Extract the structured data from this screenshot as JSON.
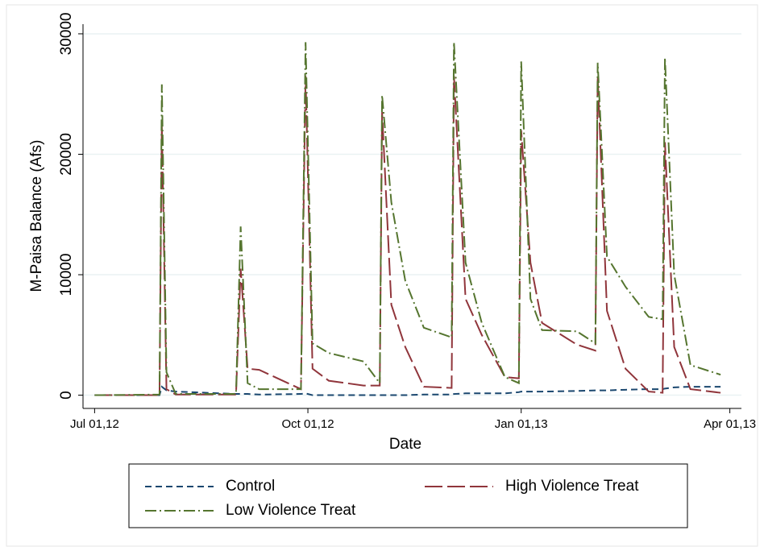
{
  "chart_data": {
    "type": "line",
    "y_label": "M-Paisa Balance (Afs)",
    "x_label": "Date",
    "x": [
      "2012-07-01",
      "2012-07-29",
      "2012-07-30",
      "2012-08-01",
      "2012-08-05",
      "2012-08-31",
      "2012-09-02",
      "2012-09-05",
      "2012-09-10",
      "2012-09-28",
      "2012-09-30",
      "2012-10-03",
      "2012-10-10",
      "2012-10-25",
      "2012-11-01",
      "2012-11-02",
      "2012-11-06",
      "2012-11-12",
      "2012-11-20",
      "2012-12-02",
      "2012-12-03",
      "2012-12-08",
      "2012-12-15",
      "2012-12-25",
      "2012-12-31",
      "2013-01-01",
      "2013-01-05",
      "2013-01-10",
      "2013-01-25",
      "2013-02-02",
      "2013-02-03",
      "2013-02-07",
      "2013-02-15",
      "2013-02-25",
      "2013-03-03",
      "2013-03-04",
      "2013-03-08",
      "2013-03-15",
      "2013-03-28"
    ],
    "series": [
      {
        "name": "Control",
        "color": "#1a476f",
        "dash": "8,5",
        "values": [
          0,
          0,
          700,
          400,
          300,
          100,
          100,
          100,
          50,
          100,
          150,
          0,
          0,
          0,
          0,
          0,
          0,
          0,
          50,
          50,
          100,
          150,
          150,
          150,
          250,
          300,
          300,
          300,
          350,
          400,
          400,
          400,
          450,
          500,
          500,
          550,
          650,
          700,
          700
        ]
      },
      {
        "name": "High Violence Treat",
        "color": "#90353b",
        "dash": "22,6",
        "values": [
          0,
          0,
          22500,
          500,
          50,
          50,
          10500,
          2200,
          2100,
          500,
          26500,
          2200,
          1200,
          800,
          800,
          23500,
          7500,
          4000,
          700,
          600,
          26500,
          8000,
          5000,
          1500,
          1400,
          22000,
          11000,
          6000,
          4200,
          3700,
          26500,
          7000,
          2200,
          300,
          200,
          21000,
          4000,
          500,
          200
        ]
      },
      {
        "name": "Low Violence Treat",
        "color": "#55752f",
        "dash": "14,4,2,4",
        "values": [
          0,
          50,
          25800,
          1900,
          100,
          100,
          14000,
          1000,
          500,
          500,
          29300,
          4300,
          3500,
          2800,
          1000,
          24900,
          16000,
          9500,
          5600,
          4800,
          29300,
          11000,
          6000,
          1500,
          1000,
          27700,
          8000,
          5400,
          5300,
          4300,
          27600,
          11500,
          9000,
          6500,
          6300,
          28000,
          10000,
          2500,
          1700
        ]
      }
    ],
    "xlim": [
      "2012-06-26",
      "2013-04-06"
    ],
    "xticks": [
      {
        "value": "2012-07-01",
        "label": "Jul 01,12"
      },
      {
        "value": "2012-10-01",
        "label": "Oct 01,12"
      },
      {
        "value": "2013-01-01",
        "label": "Jan 01,13"
      },
      {
        "value": "2013-04-01",
        "label": "Apr 01,13"
      }
    ],
    "ylim": [
      -1100,
      30800
    ],
    "yticks": [
      0,
      10000,
      20000,
      30000
    ],
    "grid": true,
    "grid_color": "#eaf2f3",
    "legend": "bottom"
  }
}
